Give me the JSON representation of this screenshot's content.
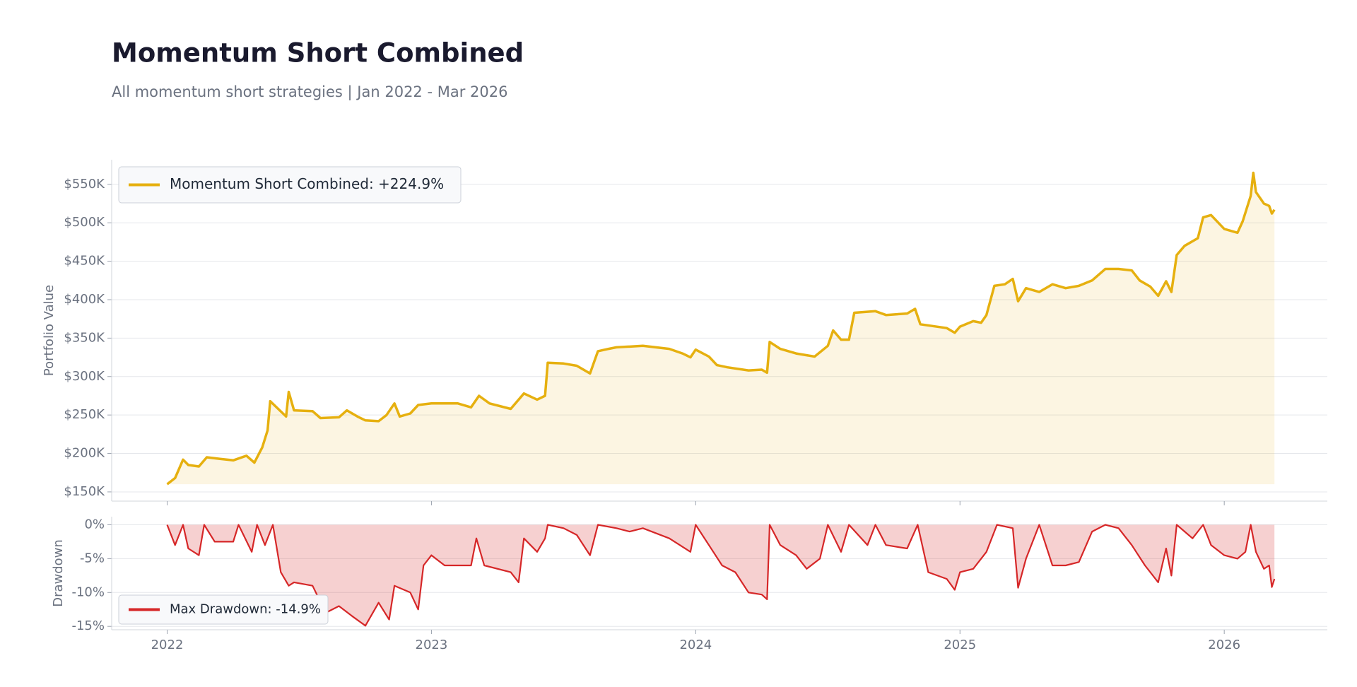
{
  "chart_data": [
    {
      "type": "line",
      "title": "Momentum Short Combined",
      "subtitle": "All momentum short strategies | Jan 2022 - Mar 2026",
      "ylabel": "Portfolio Value",
      "x": [
        2022.0,
        2022.03,
        2022.06,
        2022.08,
        2022.12,
        2022.15,
        2022.2,
        2022.25,
        2022.3,
        2022.33,
        2022.36,
        2022.38,
        2022.39,
        2022.42,
        2022.45,
        2022.46,
        2022.48,
        2022.55,
        2022.58,
        2022.65,
        2022.68,
        2022.72,
        2022.75,
        2022.8,
        2022.83,
        2022.86,
        2022.88,
        2022.92,
        2022.95,
        2023.0,
        2023.1,
        2023.15,
        2023.18,
        2023.22,
        2023.3,
        2023.35,
        2023.4,
        2023.43,
        2023.44,
        2023.5,
        2023.55,
        2023.6,
        2023.63,
        2023.67,
        2023.7,
        2023.8,
        2023.9,
        2023.95,
        2023.98,
        2024.0,
        2024.05,
        2024.08,
        2024.12,
        2024.2,
        2024.25,
        2024.27,
        2024.28,
        2024.32,
        2024.38,
        2024.45,
        2024.5,
        2024.52,
        2024.55,
        2024.58,
        2024.6,
        2024.68,
        2024.72,
        2024.8,
        2024.83,
        2024.85,
        2024.95,
        2024.98,
        2025.0,
        2025.05,
        2025.08,
        2025.1,
        2025.13,
        2025.17,
        2025.2,
        2025.22,
        2025.25,
        2025.3,
        2025.35,
        2025.4,
        2025.45,
        2025.5,
        2025.55,
        2025.6,
        2025.65,
        2025.68,
        2025.72,
        2025.75,
        2025.78,
        2025.8,
        2025.82,
        2025.85,
        2025.9,
        2025.92,
        2025.95,
        2026.0,
        2026.05,
        2026.07,
        2026.1,
        2026.11,
        2026.12,
        2026.15,
        2026.17,
        2026.18,
        2026.19
      ],
      "series": [
        {
          "name": "Momentum Short Combined: +224.9%",
          "color": "#e6b00f",
          "values": [
            160,
            168,
            192,
            185,
            183,
            195,
            193,
            191,
            197,
            188,
            208,
            230,
            268,
            258,
            248,
            280,
            256,
            255,
            246,
            247,
            256,
            248,
            243,
            242,
            250,
            265,
            248,
            252,
            263,
            265,
            265,
            260,
            275,
            265,
            258,
            278,
            270,
            275,
            318,
            317,
            314,
            304,
            333,
            336,
            338,
            340,
            336,
            330,
            325,
            335,
            326,
            315,
            312,
            308,
            309,
            305,
            345,
            336,
            330,
            326,
            340,
            360,
            348,
            348,
            383,
            385,
            380,
            382,
            388,
            368,
            363,
            357,
            365,
            372,
            370,
            380,
            418,
            420,
            427,
            398,
            415,
            410,
            420,
            415,
            418,
            425,
            440,
            440,
            438,
            425,
            417,
            405,
            424,
            410,
            458,
            470,
            480,
            507,
            510,
            492,
            487,
            502,
            535,
            565,
            540,
            525,
            522,
            512,
            517
          ]
        }
      ],
      "ylim": [
        138,
        582
      ],
      "yticks": [
        {
          "value": 150,
          "label": "$150K"
        },
        {
          "value": 200,
          "label": "$200K"
        },
        {
          "value": 250,
          "label": "$250K"
        },
        {
          "value": 300,
          "label": "$300K"
        },
        {
          "value": 350,
          "label": "$350K"
        },
        {
          "value": 400,
          "label": "$400K"
        },
        {
          "value": 450,
          "label": "$450K"
        },
        {
          "value": 500,
          "label": "$500K"
        },
        {
          "value": 550,
          "label": "$550K"
        }
      ],
      "xlim": [
        2021.79,
        2026.39
      ],
      "grid": true,
      "legend": "upper left"
    },
    {
      "type": "area",
      "ylabel": "Drawdown",
      "x": [
        2022.0,
        2022.03,
        2022.06,
        2022.08,
        2022.12,
        2022.14,
        2022.18,
        2022.25,
        2022.27,
        2022.32,
        2022.34,
        2022.37,
        2022.4,
        2022.43,
        2022.46,
        2022.48,
        2022.55,
        2022.6,
        2022.65,
        2022.7,
        2022.75,
        2022.8,
        2022.84,
        2022.86,
        2022.92,
        2022.95,
        2022.97,
        2023.0,
        2023.05,
        2023.15,
        2023.17,
        2023.2,
        2023.3,
        2023.33,
        2023.35,
        2023.4,
        2023.43,
        2023.44,
        2023.5,
        2023.55,
        2023.6,
        2023.63,
        2023.7,
        2023.75,
        2023.8,
        2023.9,
        2023.98,
        2024.0,
        2024.05,
        2024.1,
        2024.15,
        2024.2,
        2024.25,
        2024.27,
        2024.28,
        2024.32,
        2024.38,
        2024.42,
        2024.47,
        2024.5,
        2024.55,
        2024.58,
        2024.65,
        2024.68,
        2024.72,
        2024.8,
        2024.84,
        2024.88,
        2024.95,
        2024.98,
        2025.0,
        2025.05,
        2025.1,
        2025.14,
        2025.2,
        2025.22,
        2025.25,
        2025.3,
        2025.35,
        2025.4,
        2025.45,
        2025.5,
        2025.55,
        2025.6,
        2025.65,
        2025.7,
        2025.75,
        2025.78,
        2025.8,
        2025.82,
        2025.88,
        2025.92,
        2025.95,
        2026.0,
        2026.05,
        2026.08,
        2026.1,
        2026.12,
        2026.15,
        2026.17,
        2026.18,
        2026.19
      ],
      "series": [
        {
          "name": "Max Drawdown: -14.9%",
          "color": "#d62728",
          "values": [
            0,
            -3,
            0,
            -3.5,
            -4.5,
            0,
            -2.5,
            -2.5,
            0,
            -4,
            0,
            -3,
            0,
            -7,
            -9,
            -8.5,
            -9,
            -13,
            -12,
            -13.5,
            -14.9,
            -11.5,
            -14,
            -9,
            -10,
            -12.5,
            -6,
            -4.5,
            -6,
            -6,
            -2,
            -6,
            -7,
            -8.5,
            -2,
            -4,
            -2,
            0,
            -0.5,
            -1.5,
            -4.5,
            0,
            -0.5,
            -1,
            -0.5,
            -2,
            -4,
            0,
            -3,
            -6,
            -7,
            -10,
            -10.3,
            -11,
            0,
            -3,
            -4.5,
            -6.5,
            -5,
            0,
            -4,
            0,
            -3,
            0,
            -3,
            -3.5,
            0,
            -7,
            -8,
            -9.6,
            -7,
            -6.5,
            -4,
            0,
            -0.5,
            -9.3,
            -5,
            0,
            -6,
            -6,
            -5.5,
            -1,
            0,
            -0.5,
            -3,
            -6,
            -8.5,
            -3.5,
            -7.5,
            0,
            -2,
            0,
            -3,
            -4.5,
            -5,
            -4,
            0,
            -4,
            -6.5,
            -6,
            -9.2,
            -8
          ]
        }
      ],
      "ylim": [
        -15.5,
        1.2
      ],
      "yticks": [
        {
          "value": 0,
          "label": "0%"
        },
        {
          "value": -5,
          "label": "-5%"
        },
        {
          "value": -10,
          "label": "-10%"
        },
        {
          "value": -15,
          "label": "-15%"
        }
      ],
      "xlim": [
        2021.79,
        2026.39
      ],
      "xticks": [
        2022,
        2023,
        2024,
        2025,
        2026
      ],
      "grid": true,
      "legend": "lower left"
    }
  ]
}
